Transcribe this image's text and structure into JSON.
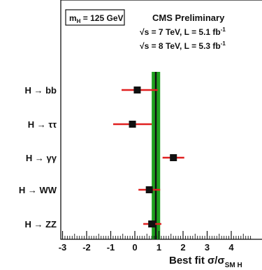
{
  "chart_data": {
    "type": "scatter",
    "title": "CMS Preliminary",
    "annotations": {
      "mass_box": {
        "prefix": "m",
        "subscript": "H",
        "suffix": " = 125 GeV"
      },
      "energy_lines": [
        {
          "prefix": "√s = 7 TeV, L = 5.1 fb",
          "superscript": "-1"
        },
        {
          "prefix": "√s = 8 TeV, L = 5.3 fb",
          "superscript": "-1"
        }
      ]
    },
    "xaxis": {
      "label": "Best fit σ/σ",
      "label_subscript": "SM H",
      "range": [
        -3,
        4.8
      ],
      "ticks": [
        -3,
        -2,
        -1,
        0,
        1,
        2,
        3,
        4
      ],
      "tick_labels": [
        "-3",
        "-2",
        "-1",
        "0",
        "1",
        "2",
        "3",
        "4"
      ]
    },
    "band": {
      "center": 0.87,
      "low": 0.7,
      "high": 1.05,
      "color": "#1fa01f"
    },
    "series": [
      {
        "categories": [
          "H → bb",
          "H → ττ",
          "H → γγ",
          "H → WW",
          "H → ZZ"
        ],
        "values": [
          0.1,
          -0.1,
          1.6,
          0.6,
          0.7
        ],
        "err_low": [
          0.65,
          0.8,
          0.45,
          0.45,
          0.35
        ],
        "err_high": [
          0.85,
          0.8,
          0.45,
          0.45,
          0.4
        ]
      }
    ],
    "colors": {
      "marker": "#111111",
      "error_bar": "#e02020",
      "frame": "#111111"
    },
    "grid": false
  }
}
